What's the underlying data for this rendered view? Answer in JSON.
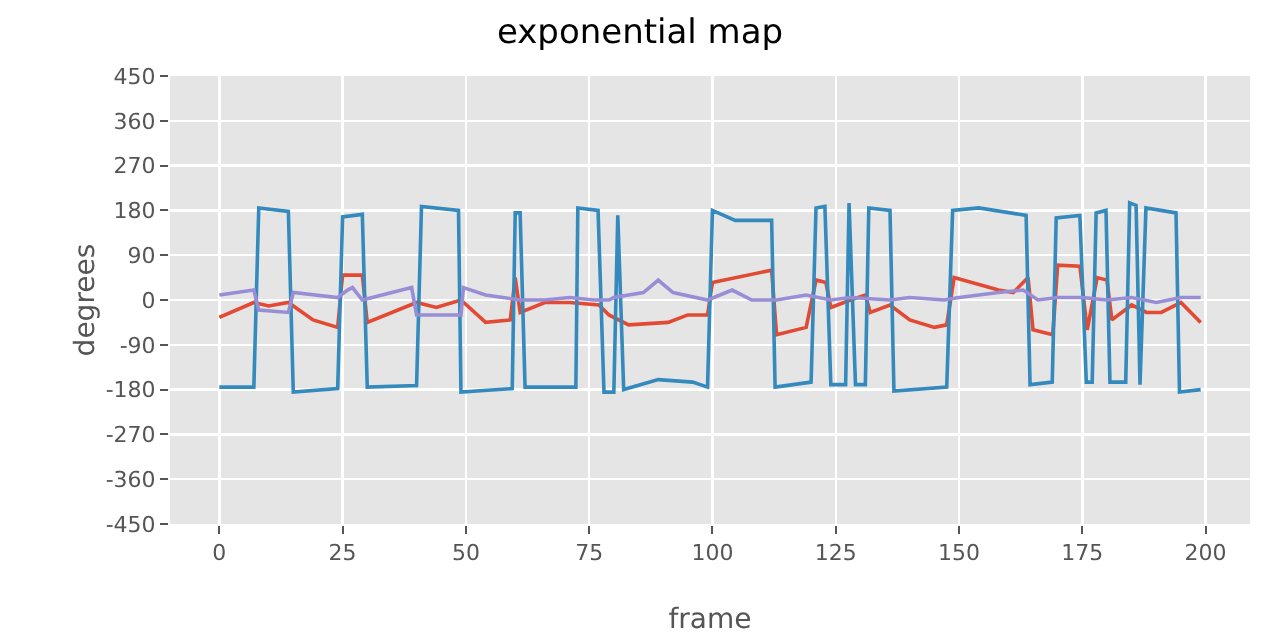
{
  "chart_data": {
    "type": "line",
    "title": "exponential map",
    "xlabel": "frame",
    "ylabel": "degrees",
    "xlim": [
      -10,
      209
    ],
    "ylim": [
      -450,
      450
    ],
    "xticks": [
      0,
      25,
      50,
      75,
      100,
      125,
      150,
      175,
      200
    ],
    "yticks": [
      -450,
      -360,
      -270,
      -180,
      -90,
      0,
      90,
      180,
      270,
      360,
      450
    ],
    "grid": true,
    "marker": "none",
    "line_style": "solid",
    "series": [
      {
        "color": "#e24a33",
        "x": [
          0,
          7,
          10,
          14,
          19,
          24,
          25,
          29,
          30,
          40,
          44,
          49,
          54,
          59,
          60,
          61,
          66,
          71,
          77,
          79,
          83,
          91,
          95,
          99,
          100,
          112,
          113,
          119,
          121,
          123,
          124,
          128,
          131,
          132,
          136,
          140,
          145,
          147.5,
          149,
          158,
          161,
          164,
          165,
          169,
          170,
          174.5,
          176,
          178,
          180,
          181,
          185,
          188,
          191,
          195,
          199
        ],
        "values": [
          -35,
          -5,
          -12,
          -5,
          -40,
          -55,
          50,
          50,
          -45,
          -5,
          -15,
          0,
          -45,
          -40,
          45,
          -25,
          -5,
          -5,
          -10,
          -30,
          -50,
          -45,
          -30,
          -30,
          35,
          60,
          -70,
          -55,
          40,
          35,
          -15,
          0,
          10,
          -25,
          -10,
          -40,
          -55,
          -50,
          45,
          20,
          15,
          45,
          -60,
          -70,
          70,
          68,
          -60,
          45,
          40,
          -40,
          -10,
          -25,
          -25,
          -5,
          -45
        ]
      },
      {
        "color": "#348abd",
        "x": [
          0,
          7,
          8,
          14,
          15,
          24,
          25,
          29,
          30,
          40,
          41,
          48.5,
          49,
          59.4,
          60,
          61,
          62,
          72.3,
          72.7,
          76.8,
          78,
          80,
          80.8,
          82,
          89,
          96,
          99,
          100,
          104.6,
          112,
          112.7,
          120,
          121,
          122.8,
          124,
          127,
          127.7,
          129,
          131,
          131.7,
          136,
          136.8,
          147.5,
          148.7,
          154,
          163.6,
          164.4,
          168.9,
          169.7,
          174.5,
          175.8,
          177,
          177.8,
          179.8,
          180.6,
          183.8,
          184.6,
          185.9,
          186.7,
          187.9,
          194,
          194.7,
          199
        ],
        "values": [
          -175,
          -175,
          185,
          178,
          -185,
          -178,
          167,
          172,
          -175,
          -172,
          188,
          180,
          -185,
          -178,
          175,
          175,
          -175,
          -175,
          185,
          180,
          -185,
          -185,
          170,
          -180,
          -160,
          -165,
          -175,
          180,
          160,
          160,
          -175,
          -165,
          185,
          188,
          -170,
          -170,
          195,
          -170,
          -170,
          185,
          180,
          -183,
          -175,
          180,
          185,
          170,
          -170,
          -165,
          165,
          170,
          -165,
          -165,
          175,
          180,
          -165,
          -165,
          195,
          190,
          -170,
          185,
          175,
          -185,
          -180
        ]
      },
      {
        "color": "#988ed5",
        "x": [
          0,
          7,
          8,
          14,
          15,
          24,
          26,
          27,
          29,
          31,
          39,
          40,
          49,
          49.5,
          54,
          61,
          66,
          71,
          76,
          79,
          80,
          86,
          89,
          92,
          99,
          104,
          108,
          113,
          119,
          124,
          128,
          136,
          140,
          147,
          150,
          158,
          163,
          166,
          170,
          175,
          180,
          185,
          190,
          195,
          199
        ],
        "values": [
          10,
          20,
          -20,
          -25,
          15,
          5,
          20,
          25,
          0,
          5,
          25,
          -30,
          -30,
          25,
          10,
          0,
          0,
          5,
          0,
          0,
          5,
          15,
          40,
          15,
          0,
          20,
          0,
          0,
          10,
          0,
          5,
          0,
          5,
          0,
          5,
          15,
          20,
          0,
          5,
          5,
          0,
          5,
          -5,
          5,
          5
        ]
      }
    ]
  }
}
